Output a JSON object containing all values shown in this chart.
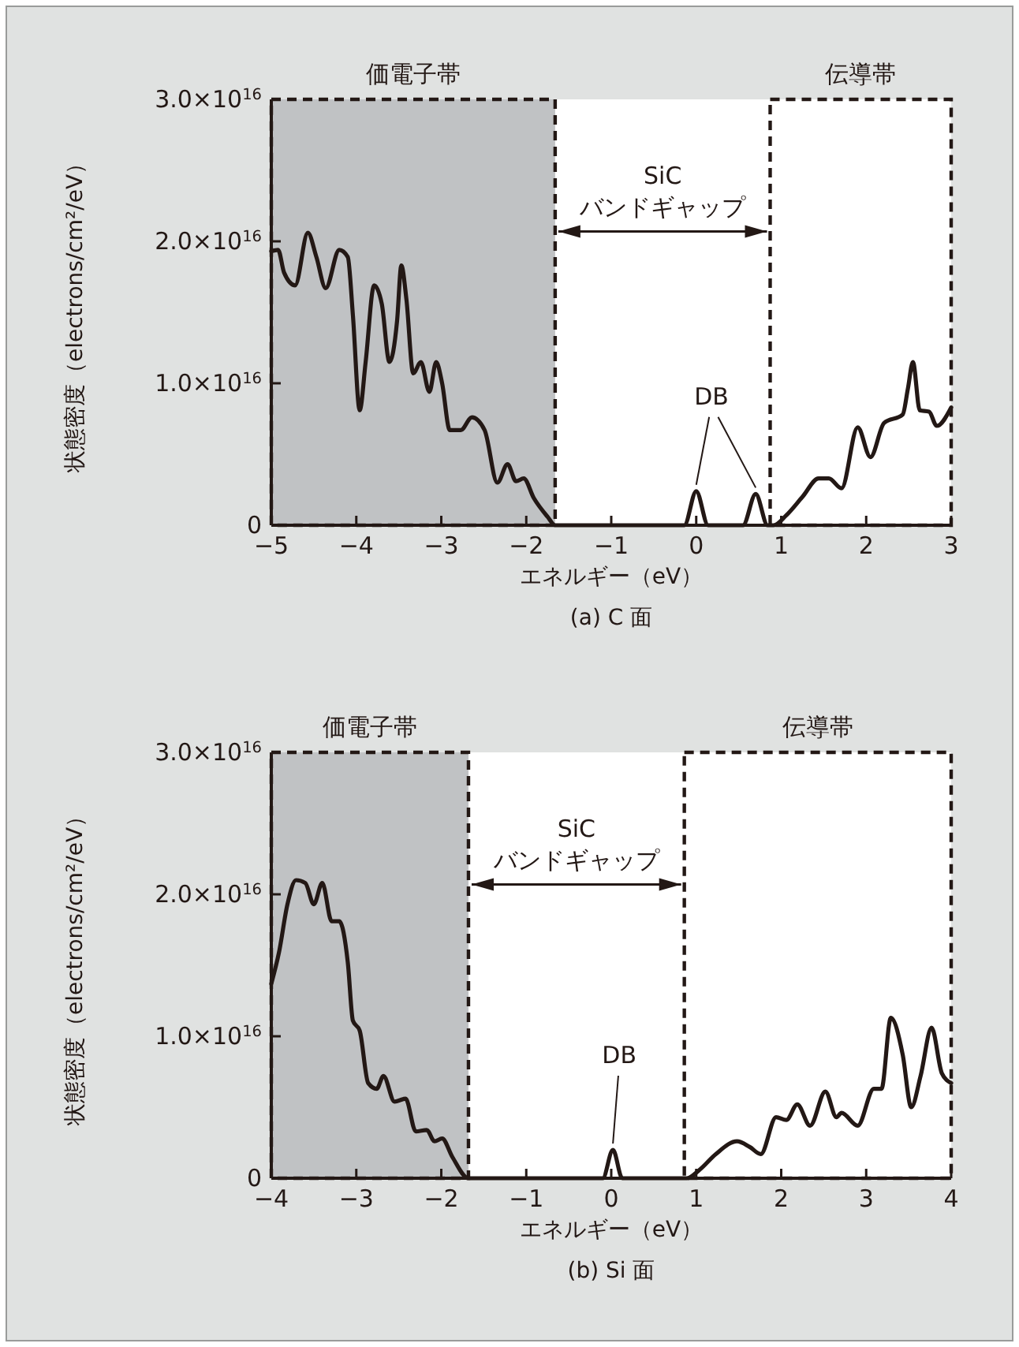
{
  "chart_data": [
    {
      "type": "line",
      "title": "(a) C 面",
      "xlabel": "エネルギー（eV）",
      "ylabel": "状態密度（electrons/cm²/eV）",
      "xlim": [
        -5,
        3
      ],
      "xticks": [
        {
          "value": -5,
          "label": "−5"
        },
        {
          "value": -4,
          "label": "−4"
        },
        {
          "value": -3,
          "label": "−3"
        },
        {
          "value": -2,
          "label": "−2"
        },
        {
          "value": -1,
          "label": "−1"
        },
        0,
        1,
        2,
        3
      ],
      "ylim": [
        0,
        3e+16
      ],
      "yticks": [
        0,
        {
          "value": 1e+16,
          "label": "1.0×10$^{16}$"
        },
        {
          "value": 2e+16,
          "label": "2.0×10$^{16}$"
        },
        {
          "value": 3e+16,
          "label": "3.0×10$^{16}$"
        }
      ],
      "grid": false,
      "line_style": "solid",
      "marker": "none",
      "bands": [
        {
          "axis": "x",
          "from": -5,
          "to": -1.66,
          "label": "価電子帯",
          "color": "#c0c2c4"
        },
        {
          "axis": "x",
          "from": 0.87,
          "to": 3,
          "label": "伝導帯",
          "color": "#ffffff"
        }
      ],
      "annotations": [
        "SiC\nバンドギャップ",
        {
          "text": "DB",
          "x": 0,
          "y": 2400000000000000.0
        }
      ],
      "series": [
        {
          "color": "#231815",
          "x": [
            -5,
            -4.92,
            -4.85,
            -4.72,
            -4.57,
            -4.47,
            -4.36,
            -4.2,
            -4.1,
            -4.04,
            -3.96,
            -3.89,
            -3.79,
            -3.7,
            -3.61,
            -3.52,
            -3.47,
            -3.41,
            -3.33,
            -3.24,
            -3.14,
            -3.06,
            -2.99,
            -2.9,
            -2.77,
            -2.64,
            -2.49,
            -2.34,
            -2.22,
            -2.12,
            -2.03,
            -1.91,
            -1.75,
            -1.66,
            -0.14,
            0,
            0.14,
            0.55,
            0.7,
            0.84,
            0.91,
            1.06,
            1.25,
            1.44,
            1.56,
            1.71,
            1.9,
            2.05,
            2.21,
            2.43,
            2.49,
            2.55,
            2.63,
            2.74,
            2.83,
            3
          ],
          "values": [
            1.93e+16,
            1.94e+16,
            1.78e+16,
            1.69e+16,
            2.06e+16,
            1.89e+16,
            1.67e+16,
            1.94e+16,
            1.89e+16,
            1.48e+16,
            8100000000000000.0,
            1.15e+16,
            1.69e+16,
            1.56e+16,
            1.15e+16,
            1.44e+16,
            1.83e+16,
            1.59e+16,
            1.07e+16,
            1.15e+16,
            9400000000000000.0,
            1.15e+16,
            1e+16,
            6700000000000000.0,
            6700000000000000.0,
            7600000000000000.0,
            6700000000000000.0,
            3000000000000000.0,
            4300000000000000.0,
            3100000000000000.0,
            3300000000000000.0,
            1900000000000000.0,
            600000000000000.0,
            0,
            0,
            2400000000000000.0,
            0,
            0,
            2200000000000000.0,
            0,
            0,
            700000000000000.0,
            2000000000000000.0,
            3300000000000000.0,
            3300000000000000.0,
            2600000000000000.0,
            6900000000000000.0,
            4800000000000000.0,
            7200000000000000.0,
            7800000000000000.0,
            9600000000000000.0,
            1.15e+16,
            8100000000000000.0,
            8000000000000000.0,
            7000000000000000.0,
            8300000000000000.0
          ]
        }
      ]
    },
    {
      "type": "line",
      "title": "(b) Si 面",
      "xlabel": "エネルギー（eV）",
      "ylabel": "状態密度（electrons/cm²/eV）",
      "xlim": [
        -4,
        4
      ],
      "xticks": [
        {
          "value": -4,
          "label": "−4"
        },
        {
          "value": -3,
          "label": "−3"
        },
        {
          "value": -2,
          "label": "−2"
        },
        {
          "value": -1,
          "label": "−1"
        },
        0,
        1,
        2,
        3,
        4
      ],
      "ylim": [
        0,
        3e+16
      ],
      "yticks": [
        0,
        {
          "value": 1e+16,
          "label": "1.0×10$^{16}$"
        },
        {
          "value": 2e+16,
          "label": "2.0×10$^{16}$"
        },
        {
          "value": 3e+16,
          "label": "3.0×10$^{16}$"
        }
      ],
      "grid": false,
      "line_style": "solid",
      "marker": "none",
      "bands": [
        {
          "axis": "x",
          "from": -4,
          "to": -1.68,
          "label": "価電子帯",
          "color": "#c0c2c4"
        },
        {
          "axis": "x",
          "from": 0.86,
          "to": 4,
          "label": "伝導帯",
          "color": "#ffffff"
        }
      ],
      "annotations": [
        "SiC\nバンドギャップ",
        {
          "text": "DB",
          "x": 0.02,
          "y": 2000000000000000.0
        }
      ],
      "series": [
        {
          "color": "#231815",
          "x": [
            -4,
            -3.91,
            -3.81,
            -3.71,
            -3.6,
            -3.5,
            -3.4,
            -3.29,
            -3.2,
            -3.1,
            -3.04,
            -2.96,
            -2.86,
            -2.76,
            -2.68,
            -2.55,
            -2.42,
            -2.3,
            -2.17,
            -2.08,
            -1.99,
            -1.87,
            -1.68,
            -0.1,
            0.02,
            0.13,
            0.89,
            1.04,
            1.23,
            1.48,
            1.63,
            1.76,
            1.94,
            2.06,
            2.19,
            2.34,
            2.52,
            2.65,
            2.71,
            2.9,
            3.09,
            3.18,
            3.29,
            3.43,
            3.53,
            3.64,
            3.77,
            3.89,
            4
          ],
          "values": [
            1.37e+16,
            1.59e+16,
            1.93e+16,
            2.1e+16,
            2.08e+16,
            1.93e+16,
            2.08e+16,
            1.81e+16,
            1.81e+16,
            1.52e+16,
            1.11e+16,
            1.04e+16,
            6700000000000000.0,
            6300000000000000.0,
            7200000000000000.0,
            5400000000000000.0,
            5600000000000000.0,
            3300000000000000.0,
            3400000000000000.0,
            2600000000000000.0,
            2800000000000000.0,
            1500000000000000.0,
            0,
            0,
            2000000000000000.0,
            0,
            0,
            600000000000000.0,
            1700000000000000.0,
            2600000000000000.0,
            2200000000000000.0,
            1700000000000000.0,
            4300000000000000.0,
            4100000000000000.0,
            5200000000000000.0,
            3700000000000000.0,
            6100000000000000.0,
            4300000000000000.0,
            4600000000000000.0,
            3700000000000000.0,
            6300000000000000.0,
            6300000000000000.0,
            1.13e+16,
            8700000000000000.0,
            5000000000000000.0,
            7200000000000000.0,
            1.06e+16,
            7400000000000000.0,
            6700000000000000.0
          ]
        }
      ]
    }
  ]
}
